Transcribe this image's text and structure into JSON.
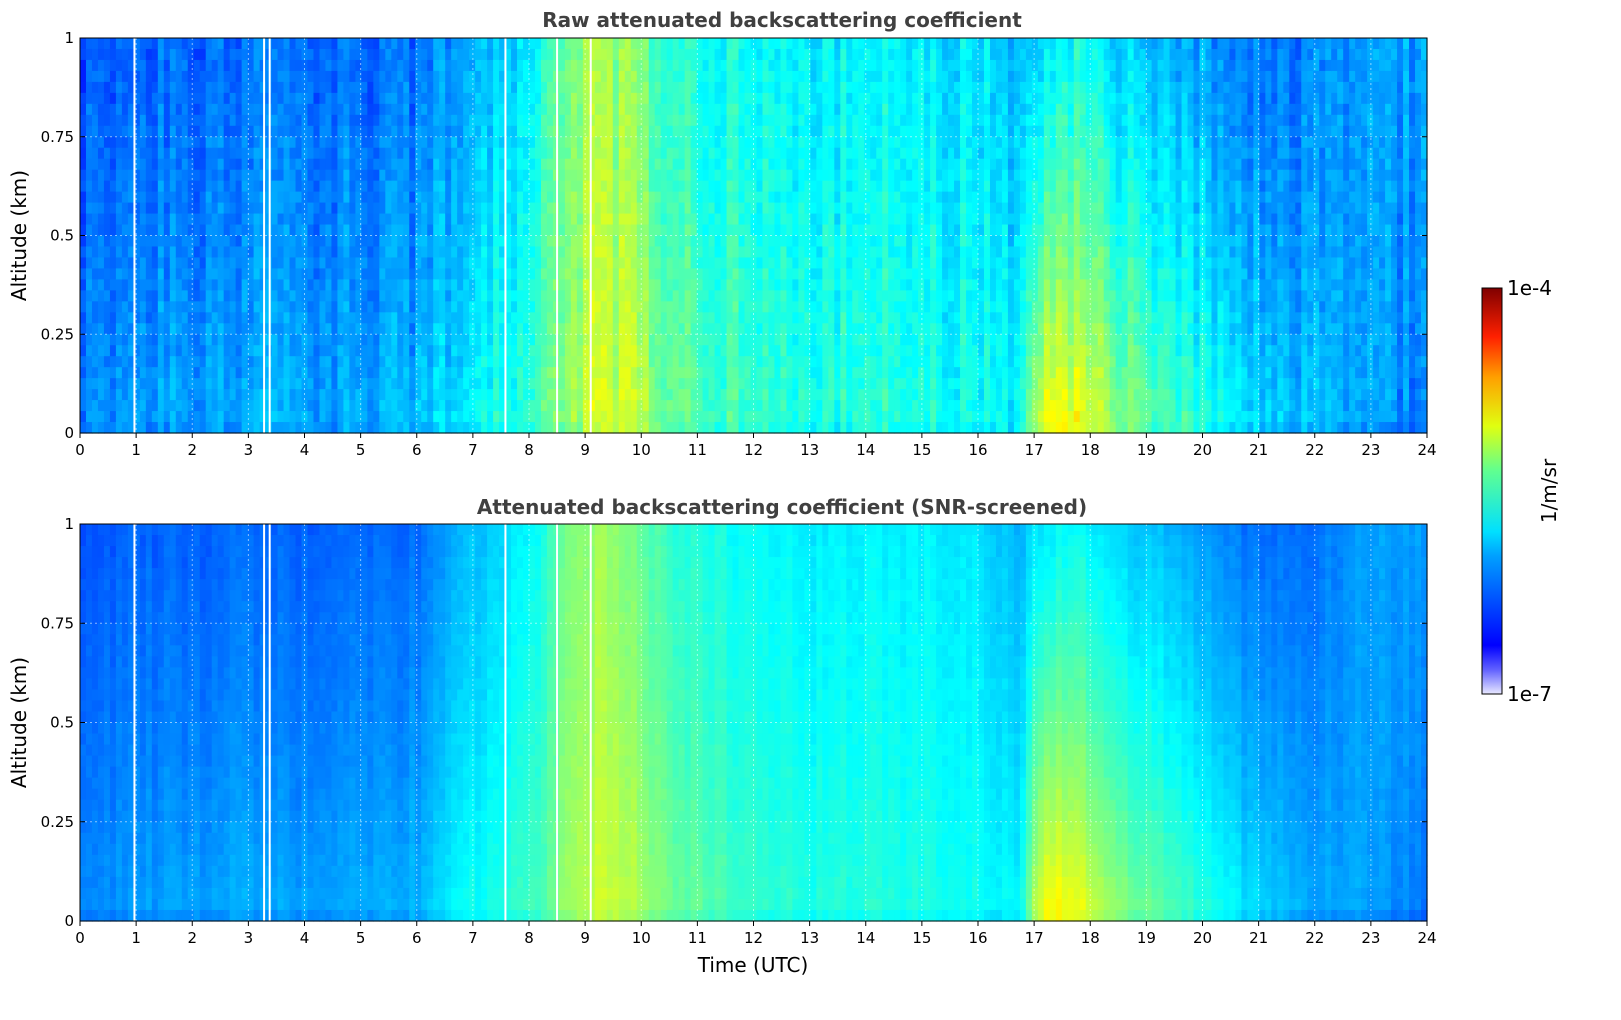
{
  "chart_data": [
    {
      "type": "heatmap",
      "title": "Raw attenuated backscattering coefficient",
      "xlabel": "",
      "ylabel": "Altitude (km)",
      "xlim": [
        0,
        24
      ],
      "ylim": [
        0,
        1
      ],
      "x_ticks": [
        "0",
        "1",
        "2",
        "3",
        "4",
        "5",
        "6",
        "7",
        "8",
        "9",
        "10",
        "11",
        "12",
        "13",
        "14",
        "15",
        "16",
        "17",
        "18",
        "19",
        "20",
        "21",
        "22",
        "23",
        "24"
      ],
      "y_ticks": [
        "0",
        "0.25",
        "0.5",
        "0.75",
        "1"
      ],
      "grid": true,
      "missing_data_gaps_utc": [
        0.97,
        3.28,
        3.38,
        7.58,
        8.5,
        9.1
      ],
      "description_of_field": "low values (blue) overnight; elevated values 8.5-11 UTC throughout column and 17.2-19 UTC below 0.5 km"
    },
    {
      "type": "heatmap",
      "title": "Attenuated backscattering coefficient (SNR-screened)",
      "xlabel": "Time (UTC)",
      "ylabel": "Altitude (km)",
      "xlim": [
        0,
        24
      ],
      "ylim": [
        0,
        1
      ],
      "x_ticks": [
        "0",
        "1",
        "2",
        "3",
        "4",
        "5",
        "6",
        "7",
        "8",
        "9",
        "10",
        "11",
        "12",
        "13",
        "14",
        "15",
        "16",
        "17",
        "18",
        "19",
        "20",
        "21",
        "22",
        "23",
        "24"
      ],
      "y_ticks": [
        "0",
        "0.25",
        "0.5",
        "0.75",
        "1"
      ],
      "grid": true,
      "missing_data_gaps_utc": [
        0.97,
        3.28,
        3.38,
        7.58,
        8.5,
        9.1
      ]
    }
  ],
  "colorbar": {
    "label": "1/m/sr",
    "max_label": "1e-4",
    "min_label": "1e-7",
    "scale": "log",
    "range": [
      1e-07,
      0.0001
    ],
    "colormap": "jet"
  },
  "profile": {
    "knots_hour": [
      0,
      0.5,
      1,
      2,
      3,
      4,
      5,
      6,
      6.6,
      7.2,
      8,
      8.6,
      9.2,
      9.8,
      10.5,
      11,
      12,
      13,
      14,
      15,
      16,
      16.7,
      17.2,
      17.8,
      18.6,
      19.5,
      20.5,
      21.2,
      22,
      23,
      24
    ],
    "upper_level": [
      0.2,
      0.21,
      0.22,
      0.22,
      0.23,
      0.22,
      0.23,
      0.23,
      0.28,
      0.32,
      0.36,
      0.48,
      0.53,
      0.5,
      0.42,
      0.4,
      0.38,
      0.36,
      0.37,
      0.36,
      0.35,
      0.3,
      0.36,
      0.38,
      0.33,
      0.3,
      0.25,
      0.23,
      0.24,
      0.28,
      0.28
    ],
    "lower_level": [
      0.26,
      0.27,
      0.28,
      0.29,
      0.3,
      0.29,
      0.3,
      0.31,
      0.36,
      0.4,
      0.43,
      0.52,
      0.58,
      0.57,
      0.49,
      0.47,
      0.43,
      0.41,
      0.42,
      0.4,
      0.39,
      0.37,
      0.66,
      0.62,
      0.52,
      0.46,
      0.38,
      0.33,
      0.3,
      0.28,
      0.24
    ]
  }
}
